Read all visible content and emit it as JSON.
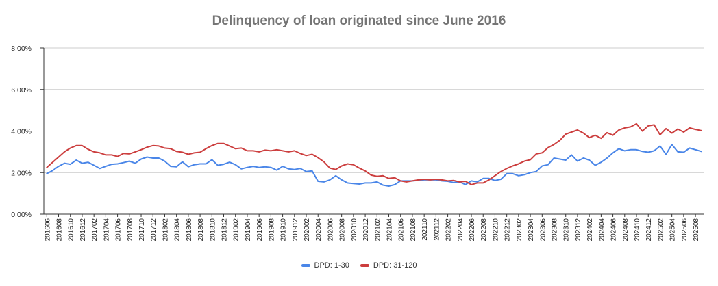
{
  "chart_data": {
    "type": "line",
    "title": "Delinquency of loan originated since June 2016",
    "xlabel": "",
    "ylabel": "",
    "ylim": [
      0,
      8
    ],
    "y_ticks": [
      "0.00%",
      "2.00%",
      "4.00%",
      "6.00%",
      "8.00%"
    ],
    "y_unit": "%",
    "grid": true,
    "legend_position": "bottom",
    "x_tick_labels": [
      "201606",
      "201608",
      "201610",
      "201612",
      "201702",
      "201704",
      "201706",
      "201708",
      "201710",
      "201712",
      "201802",
      "201804",
      "201806",
      "201808",
      "201810",
      "201812",
      "201902",
      "201904",
      "201906",
      "201908",
      "201910",
      "201912",
      "202002",
      "202004",
      "202006",
      "202008",
      "202010",
      "202012",
      "202102",
      "202104",
      "202106",
      "202108",
      "202110",
      "202112",
      "202202",
      "202204",
      "202206",
      "202208",
      "202210",
      "202212",
      "202302",
      "202304",
      "202306",
      "202308",
      "202310",
      "202312",
      "202402",
      "202404",
      "202406",
      "202408",
      "202410",
      "202412",
      "202502",
      "202504",
      "202506",
      "202508"
    ],
    "x": [
      "201606",
      "201607",
      "201608",
      "201609",
      "201610",
      "201611",
      "201612",
      "201701",
      "201702",
      "201703",
      "201704",
      "201705",
      "201706",
      "201707",
      "201708",
      "201709",
      "201710",
      "201711",
      "201712",
      "201801",
      "201802",
      "201803",
      "201804",
      "201805",
      "201806",
      "201807",
      "201808",
      "201809",
      "201810",
      "201811",
      "201812",
      "201901",
      "201902",
      "201903",
      "201904",
      "201905",
      "201906",
      "201907",
      "201908",
      "201909",
      "201910",
      "201911",
      "201912",
      "202001",
      "202002",
      "202003",
      "202004",
      "202005",
      "202006",
      "202007",
      "202008",
      "202009",
      "202010",
      "202011",
      "202012",
      "202101",
      "202102",
      "202103",
      "202104",
      "202105",
      "202106",
      "202107",
      "202108",
      "202109",
      "202110",
      "202111",
      "202112",
      "202201",
      "202202",
      "202203",
      "202204",
      "202205",
      "202206",
      "202207",
      "202208",
      "202209",
      "202210",
      "202211",
      "202212",
      "202301",
      "202302",
      "202303",
      "202304",
      "202305",
      "202306",
      "202307",
      "202308",
      "202309",
      "202310",
      "202311",
      "202312",
      "202401",
      "202402",
      "202403",
      "202404",
      "202405",
      "202406",
      "202407",
      "202408",
      "202409",
      "202410",
      "202411",
      "202412",
      "202501",
      "202502",
      "202503",
      "202504",
      "202505",
      "202506",
      "202507",
      "202508",
      "202509"
    ],
    "series": [
      {
        "name": "DPD: 1-30",
        "color": "#4a86e8",
        "values": [
          1.95,
          2.1,
          2.3,
          2.45,
          2.4,
          2.6,
          2.45,
          2.5,
          2.35,
          2.2,
          2.3,
          2.4,
          2.42,
          2.48,
          2.55,
          2.45,
          2.65,
          2.75,
          2.7,
          2.7,
          2.55,
          2.3,
          2.28,
          2.52,
          2.28,
          2.38,
          2.42,
          2.42,
          2.62,
          2.35,
          2.4,
          2.5,
          2.38,
          2.18,
          2.25,
          2.3,
          2.25,
          2.28,
          2.25,
          2.12,
          2.3,
          2.18,
          2.15,
          2.2,
          2.05,
          2.08,
          1.58,
          1.55,
          1.65,
          1.85,
          1.65,
          1.5,
          1.47,
          1.45,
          1.5,
          1.5,
          1.55,
          1.4,
          1.35,
          1.42,
          1.6,
          1.6,
          1.6,
          1.62,
          1.65,
          1.65,
          1.65,
          1.6,
          1.58,
          1.52,
          1.55,
          1.42,
          1.6,
          1.55,
          1.72,
          1.72,
          1.62,
          1.68,
          1.95,
          1.95,
          1.85,
          1.9,
          2.0,
          2.05,
          2.32,
          2.38,
          2.7,
          2.65,
          2.6,
          2.85,
          2.55,
          2.7,
          2.6,
          2.35,
          2.5,
          2.7,
          2.95,
          3.15,
          3.05,
          3.1,
          3.1,
          3.02,
          2.98,
          3.05,
          3.28,
          2.88,
          3.35,
          3.0,
          2.98,
          3.18,
          3.1,
          3.02
        ]
      },
      {
        "name": "DPD: 31-120",
        "color": "#cc3e3e",
        "values": [
          2.25,
          2.5,
          2.75,
          3.0,
          3.18,
          3.3,
          3.3,
          3.12,
          3.0,
          2.95,
          2.85,
          2.85,
          2.78,
          2.92,
          2.9,
          3.0,
          3.1,
          3.22,
          3.3,
          3.28,
          3.18,
          3.15,
          3.02,
          2.98,
          2.88,
          2.95,
          2.98,
          3.15,
          3.3,
          3.4,
          3.4,
          3.28,
          3.15,
          3.18,
          3.05,
          3.05,
          3.0,
          3.08,
          3.05,
          3.1,
          3.05,
          3.0,
          3.05,
          2.92,
          2.82,
          2.88,
          2.72,
          2.52,
          2.22,
          2.15,
          2.32,
          2.42,
          2.38,
          2.22,
          2.08,
          1.88,
          1.82,
          1.85,
          1.72,
          1.75,
          1.6,
          1.55,
          1.6,
          1.65,
          1.68,
          1.65,
          1.68,
          1.65,
          1.6,
          1.62,
          1.55,
          1.58,
          1.42,
          1.5,
          1.5,
          1.65,
          1.85,
          2.05,
          2.2,
          2.32,
          2.42,
          2.55,
          2.62,
          2.9,
          2.95,
          3.2,
          3.35,
          3.55,
          3.85,
          3.95,
          4.05,
          3.9,
          3.68,
          3.8,
          3.65,
          3.92,
          3.8,
          4.05,
          4.15,
          4.2,
          4.35,
          4.0,
          4.25,
          4.3,
          3.82,
          4.12,
          3.9,
          4.1,
          3.95,
          4.15,
          4.08,
          4.02
        ]
      }
    ]
  }
}
